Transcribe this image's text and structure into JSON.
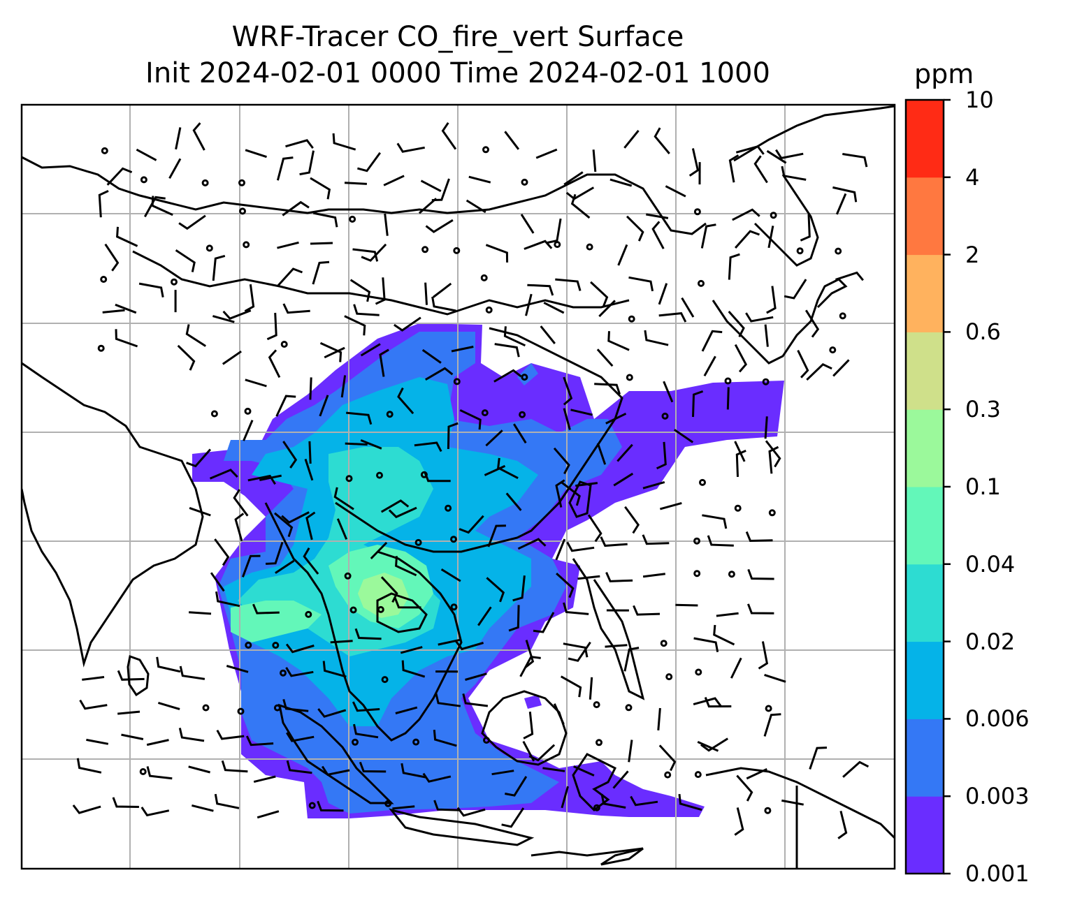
{
  "title": {
    "line1": "WRF-Tracer CO_fire_vert Surface",
    "line2": "Init 2024-02-01 0000 Time 2024-02-01 1000"
  },
  "colorbar": {
    "unit": "ppm",
    "levels": [
      "0.001",
      "0.003",
      "0.006",
      "0.02",
      "0.04",
      "0.1",
      "0.3",
      "0.6",
      "2",
      "4",
      "10"
    ],
    "colors": [
      "#6a2dff",
      "#3478f5",
      "#05b3e8",
      "#2ddcd2",
      "#63f7b9",
      "#9bf99b",
      "#cfe08a",
      "#ffb25e",
      "#ff7840",
      "#ff2b15"
    ]
  },
  "map": {
    "background": "#ffffff",
    "grid_color": "#b0b0b0",
    "coastline_color": "#000000",
    "wind_barbs": "black"
  }
}
